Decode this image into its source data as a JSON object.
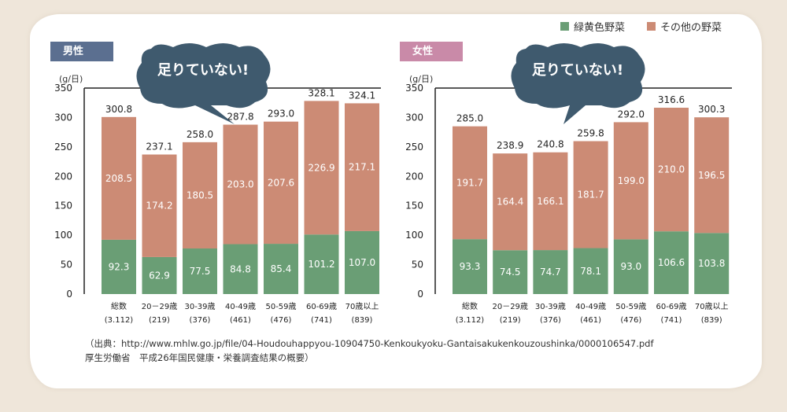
{
  "legend": {
    "green_label": "緑黄色野菜",
    "other_label": "その他の野菜",
    "green_color": "#6a9e75",
    "other_color": "#cc8b75"
  },
  "bubble_text": "足りていない!",
  "source": {
    "line1": "（出典：http://www.mhlw.go.jp/file/04-Houdouhappyou-10904750-Kenkoukyoku-Gantaisakukenkouzoushinka/0000106547.pdf",
    "line2": "厚生労働省　平成26年国民健康・栄養調査結果の概要）"
  },
  "chart_data": [
    {
      "type": "bar",
      "stacked": true,
      "panel_label": "男性",
      "panel_color": "#5b6f90",
      "ylabel": "(g/日)",
      "ylim": [
        0,
        350
      ],
      "yticks": [
        0,
        50,
        100,
        150,
        200,
        250,
        300,
        350
      ],
      "categories": [
        "総数",
        "20－29歳",
        "30-39歳",
        "40-49歳",
        "50-59歳",
        "60-69歳",
        "70歳以上"
      ],
      "category_counts": [
        "(3.112)",
        "(219)",
        "(376)",
        "(461)",
        "(476)",
        "(741)",
        "(839)"
      ],
      "series": [
        {
          "name": "緑黄色野菜",
          "values": [
            92.3,
            62.9,
            77.5,
            84.8,
            85.4,
            101.2,
            107.0
          ]
        },
        {
          "name": "その他の野菜",
          "values": [
            208.5,
            174.2,
            180.5,
            203.0,
            207.6,
            226.9,
            217.1
          ]
        }
      ],
      "totals": [
        300.8,
        237.1,
        258.0,
        287.8,
        293.0,
        328.1,
        324.1
      ]
    },
    {
      "type": "bar",
      "stacked": true,
      "panel_label": "女性",
      "panel_color": "#c98aa8",
      "ylabel": "(g/日)",
      "ylim": [
        0,
        350
      ],
      "yticks": [
        0,
        50,
        100,
        150,
        200,
        250,
        300,
        350
      ],
      "categories": [
        "総数",
        "20－29歳",
        "30-39歳",
        "40-49歳",
        "50-59歳",
        "60-69歳",
        "70歳以上"
      ],
      "category_counts": [
        "(3.112)",
        "(219)",
        "(376)",
        "(461)",
        "(476)",
        "(741)",
        "(839)"
      ],
      "series": [
        {
          "name": "緑黄色野菜",
          "values": [
            93.3,
            74.5,
            74.7,
            78.1,
            93.0,
            106.6,
            103.8
          ]
        },
        {
          "name": "その他の野菜",
          "values": [
            191.7,
            164.4,
            166.1,
            181.7,
            199.0,
            210.0,
            196.5
          ]
        }
      ],
      "totals": [
        285.0,
        238.9,
        240.8,
        259.8,
        292.0,
        316.6,
        300.3
      ]
    }
  ]
}
